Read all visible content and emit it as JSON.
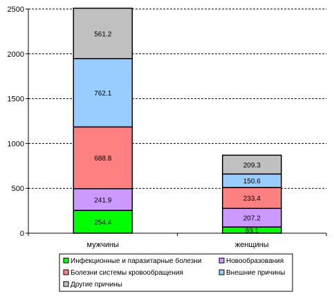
{
  "chart_data": {
    "type": "bar",
    "stacked": true,
    "categories": [
      "мужчины",
      "женщины"
    ],
    "ylim": [
      0,
      2500
    ],
    "yticks": [
      0,
      500,
      1000,
      1500,
      2000,
      2500
    ],
    "grid": true,
    "legend_position": "bottom",
    "series": [
      {
        "name": "Инфекционные и паразитарные болезни",
        "color": "#00ff00",
        "values": [
          254.4,
          69.1
        ],
        "labels": [
          "254.4",
          "69.1"
        ]
      },
      {
        "name": "Новообразования",
        "color": "#cc99ff",
        "values": [
          241.9,
          207.2
        ],
        "labels": [
          "241.9",
          "207.2"
        ]
      },
      {
        "name": "Болезни системы кровообращения",
        "color": "#ff8080",
        "values": [
          688.8,
          233.4
        ],
        "labels": [
          "688.8",
          "233.4"
        ]
      },
      {
        "name": "Внешние причины",
        "color": "#99ccff",
        "values": [
          762.1,
          150.6
        ],
        "labels": [
          "762.1",
          "150.6"
        ]
      },
      {
        "name": "Другие причины",
        "color": "#c0c0c0",
        "values": [
          561.2,
          209.3
        ],
        "labels": [
          "561.2",
          "209.3"
        ]
      }
    ]
  }
}
